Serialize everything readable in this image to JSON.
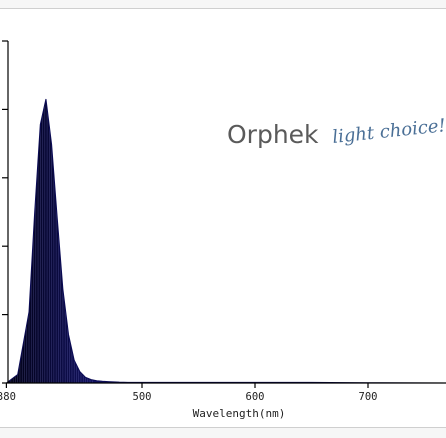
{
  "chart_data": {
    "type": "area",
    "title": "",
    "xlabel": "Wavelength(nm)",
    "ylabel": "",
    "xlim": [
      380,
      780
    ],
    "ylim": [
      0,
      1.0
    ],
    "x_ticks": [
      {
        "value": 380,
        "label": "380"
      },
      {
        "value": 500,
        "label": "500"
      },
      {
        "value": 600,
        "label": "600"
      },
      {
        "value": 700,
        "label": "700"
      }
    ],
    "y_tick_count": 6,
    "grid": false,
    "series": [
      {
        "x": [
          380,
          390,
          400,
          405,
          410,
          415,
          420,
          425,
          430,
          435,
          440,
          445,
          450,
          455,
          460,
          465,
          470,
          480,
          490,
          500,
          520,
          560,
          600,
          650,
          700,
          780
        ],
        "values": [
          0.0,
          0.03,
          0.25,
          0.6,
          0.91,
          1.0,
          0.84,
          0.58,
          0.33,
          0.17,
          0.08,
          0.04,
          0.02,
          0.012,
          0.008,
          0.006,
          0.005,
          0.003,
          0.002,
          0.002,
          0.002,
          0.002,
          0.002,
          0.002,
          0.001,
          0.0
        ]
      }
    ],
    "fill_colors": [
      "#000010",
      "#1a1a8a",
      "#2a2ad0"
    ]
  },
  "watermark": {
    "name": "Orphek",
    "tagline": "light choice!"
  }
}
